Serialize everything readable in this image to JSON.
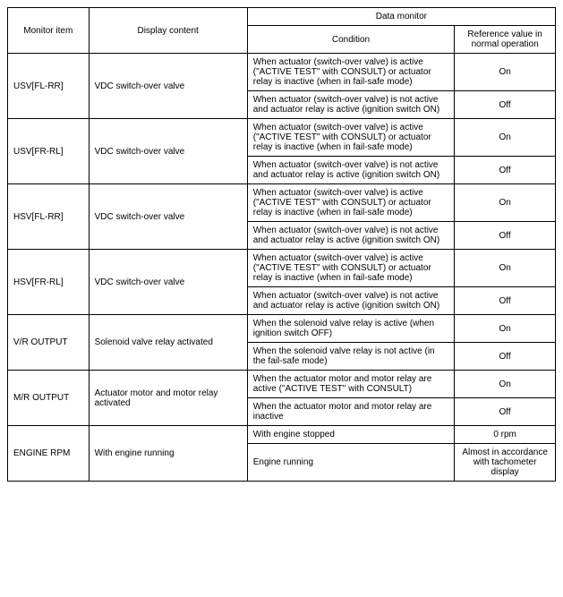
{
  "headers": {
    "monitor_item": "Monitor item",
    "display_content": "Display content",
    "data_monitor": "Data monitor",
    "condition": "Condition",
    "reference": "Reference value in normal operation"
  },
  "rows": [
    {
      "monitor_item": "USV[FL-RR]",
      "display_content": "VDC switch-over valve",
      "conditions": [
        {
          "text": "When actuator (switch-over valve) is active (\"ACTIVE TEST\" with CONSULT) or actuator relay is inactive (when in fail-safe mode)",
          "ref": "On"
        },
        {
          "text": "When actuator (switch-over valve) is not active and actuator relay is active (ignition switch ON)",
          "ref": "Off"
        }
      ]
    },
    {
      "monitor_item": "USV[FR-RL]",
      "display_content": "VDC switch-over valve",
      "conditions": [
        {
          "text": "When actuator (switch-over valve) is active (\"ACTIVE TEST\" with CONSULT) or actuator relay is inactive (when in fail-safe mode)",
          "ref": "On"
        },
        {
          "text": "When actuator (switch-over valve) is not active and actuator relay is active (ignition switch ON)",
          "ref": "Off"
        }
      ]
    },
    {
      "monitor_item": "HSV[FL-RR]",
      "display_content": "VDC switch-over valve",
      "conditions": [
        {
          "text": "When actuator (switch-over valve) is active (\"ACTIVE TEST\" with CONSULT) or actuator relay is inactive (when in fail-safe mode)",
          "ref": "On"
        },
        {
          "text": "When actuator (switch-over valve) is not active and actuator relay is active (ignition switch ON)",
          "ref": "Off"
        }
      ]
    },
    {
      "monitor_item": "HSV[FR-RL]",
      "display_content": "VDC switch-over valve",
      "conditions": [
        {
          "text": "When actuator (switch-over valve) is active (\"ACTIVE TEST\" with CONSULT) or actuator relay is inactive (when in fail-safe mode)",
          "ref": "On"
        },
        {
          "text": "When actuator (switch-over valve) is not active and actuator relay is active (ignition switch ON)",
          "ref": "Off"
        }
      ]
    },
    {
      "monitor_item": "V/R OUTPUT",
      "display_content": "Solenoid valve relay activated",
      "conditions": [
        {
          "text": "When the solenoid valve relay is active (when ignition switch OFF)",
          "ref": "On"
        },
        {
          "text": "When the solenoid valve relay is not active (in the fail-safe mode)",
          "ref": "Off"
        }
      ]
    },
    {
      "monitor_item": "M/R OUTPUT",
      "display_content": "Actuator motor and motor relay activated",
      "conditions": [
        {
          "text": "When the actuator motor and motor relay are active (\"ACTIVE TEST\" with CONSULT)",
          "ref": "On"
        },
        {
          "text": "When the actuator motor and motor relay are inactive",
          "ref": "Off"
        }
      ]
    },
    {
      "monitor_item": "ENGINE RPM",
      "display_content": "With engine running",
      "conditions": [
        {
          "text": "With engine stopped",
          "ref": "0 rpm"
        },
        {
          "text": "Engine running",
          "ref": "Almost in accordance with tachometer display"
        }
      ]
    }
  ],
  "styling": {
    "font_family": "Arial, sans-serif",
    "font_size": 10,
    "border_color": "#000000",
    "background_color": "#ffffff",
    "col_widths": {
      "monitor": 90,
      "display": 176,
      "condition": 230,
      "ref": 112
    }
  }
}
